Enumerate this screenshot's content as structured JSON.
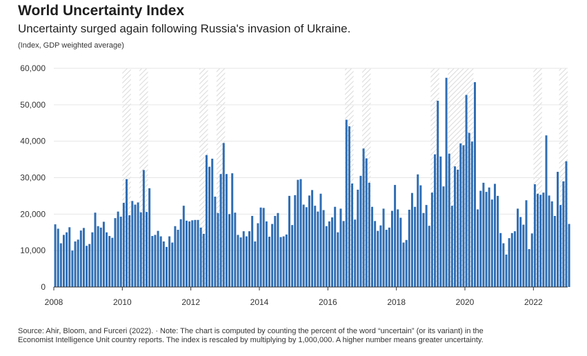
{
  "header": {
    "title": "World Uncertainty Index",
    "subtitle": "Uncertainty surged again following Russia's invasion of Ukraine.",
    "unit_note": "(Index, GDP weighted average)"
  },
  "footer": {
    "line1": "Source: Ahir, Bloom, and Furceri (2022). · Note: The chart is computed by counting the percent of the word “uncertain” (or its variant) in the",
    "line2": "Economist Intelligence Unit country reports. The index is rescaled by multiplying by 1,000,000. A higher number means greater uncertainty."
  },
  "colors": {
    "bar": "#2f6db3",
    "grid": "#e6e6e6",
    "recession_hatch": "#d9d9d9"
  },
  "chart_data": {
    "type": "bar",
    "title": "World Uncertainty Index",
    "xlabel": "",
    "ylabel": "",
    "x_start": 2008,
    "x_step_months": 1,
    "xlim": [
      2008,
      2023
    ],
    "ylim": [
      0,
      60000
    ],
    "y_ticks": [
      0,
      10000,
      20000,
      30000,
      40000,
      50000,
      60000
    ],
    "y_tick_labels": [
      "0",
      "10,000",
      "20,000",
      "30,000",
      "40,000",
      "50,000",
      "60,000"
    ],
    "x_ticks": [
      2008,
      2010,
      2012,
      2014,
      2016,
      2018,
      2020,
      2022
    ],
    "x_tick_labels": [
      "2008",
      "2010",
      "2012",
      "2014",
      "2016",
      "2018",
      "2020",
      "2022"
    ],
    "grid": true,
    "highlight_periods": [
      [
        2010.0,
        2010.25
      ],
      [
        2010.5,
        2010.75
      ],
      [
        2012.25,
        2012.5
      ],
      [
        2012.75,
        2013.0
      ],
      [
        2016.5,
        2016.75
      ],
      [
        2017.0,
        2017.25
      ],
      [
        2019.0,
        2019.25
      ],
      [
        2019.5,
        2019.75
      ],
      [
        2019.75,
        2020.0
      ],
      [
        2020.0,
        2020.25
      ],
      [
        2022.0,
        2022.25
      ],
      [
        2022.75,
        2023.0
      ]
    ],
    "values": [
      17200,
      16000,
      12000,
      14300,
      15000,
      16400,
      10000,
      12500,
      13000,
      15500,
      16200,
      11300,
      11800,
      15000,
      20400,
      16700,
      16300,
      17900,
      15000,
      14000,
      13500,
      18900,
      20700,
      19300,
      23100,
      29600,
      19700,
      23600,
      22600,
      23200,
      20500,
      32100,
      20600,
      27100,
      14000,
      14300,
      15400,
      13900,
      12500,
      11000,
      13900,
      12200,
      16700,
      15700,
      18600,
      22300,
      18200,
      18000,
      18300,
      18400,
      18400,
      16300,
      14600,
      36200,
      33000,
      35200,
      24800,
      20300,
      31000,
      39500,
      31000,
      20000,
      31200,
      20400,
      14300,
      13600,
      15300,
      13900,
      15300,
      19500,
      12500,
      17500,
      21800,
      21700,
      18000,
      13800,
      17300,
      19500,
      20300,
      13700,
      13900,
      14400,
      25000,
      17000,
      25200,
      29400,
      29600,
      22600,
      21900,
      25100,
      26600,
      22300,
      20700,
      25600,
      21100,
      16700,
      18000,
      19100,
      22000,
      15000,
      21500,
      18100,
      45900,
      44100,
      28400,
      18500,
      26700,
      30500,
      38000,
      35300,
      28600,
      22000,
      18100,
      15400,
      16900,
      21500,
      15700,
      16300,
      20900,
      28000,
      21300,
      19000,
      12200,
      12900,
      21200,
      25800,
      22000,
      30900,
      27900,
      20300,
      22500,
      16800,
      25900,
      36400,
      51100,
      35800,
      27600,
      57400,
      36600,
      22300,
      33100,
      32200,
      39400,
      38900,
      52700,
      42300,
      39900,
      56200,
      21300,
      26400,
      28600,
      26100,
      27300,
      24000,
      28300,
      25000,
      14800,
      12000,
      8900,
      13400,
      14800,
      15300,
      21500,
      19200,
      17100,
      23800,
      10400,
      14700,
      28200,
      25600,
      25300,
      25900,
      41600,
      25100,
      23500,
      19500,
      31600,
      22500,
      29000,
      34500,
      17300
    ]
  }
}
